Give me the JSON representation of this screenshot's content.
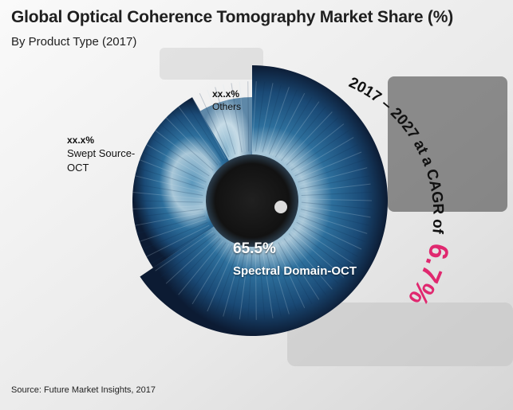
{
  "chart_data": {
    "type": "pie",
    "title": "Global Optical Coherence Tomography Market Share (%)",
    "subtitle": "By Product Type (2017)",
    "slices": [
      {
        "label": "Spectral Domain-OCT",
        "value": 65.5,
        "value_label": "65.5%"
      },
      {
        "label": "Swept Source-OCT",
        "value_label": "xx.x%"
      },
      {
        "label": "Others",
        "value_label": "xx.x%"
      }
    ],
    "annotation": {
      "prefix": "2017 – 2027 at a CAGR of",
      "value": "6.7%"
    },
    "source": "Source: Future Market Insights, 2017",
    "colors": {
      "iris_outer": "#0c1b33",
      "iris_mid": "#2d6f9c",
      "iris_light": "#a9c7d8",
      "pupil": "#121212",
      "cagr_value": "#e0286f"
    }
  }
}
